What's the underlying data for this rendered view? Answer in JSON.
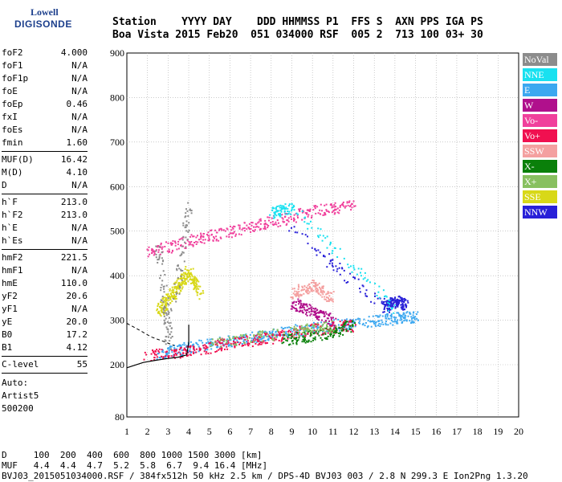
{
  "logo": {
    "top": "Lowell",
    "bottom": "DIGISONDE"
  },
  "header": {
    "line1": "Station    YYYY DAY    DDD HHMMSS P1  FFS S  AXN PPS IGA PS",
    "line2": "Boa Vista 2015 Feb20  051 034000 RSF  005 2  713 100 03+ 30"
  },
  "params_group1": [
    {
      "label": "foF2",
      "value": "4.000"
    },
    {
      "label": "foF1",
      "value": "N/A"
    },
    {
      "label": "foF1p",
      "value": "N/A"
    },
    {
      "label": "foE",
      "value": "N/A"
    },
    {
      "label": "foEp",
      "value": "0.46"
    },
    {
      "label": "fxI",
      "value": "N/A"
    },
    {
      "label": "foEs",
      "value": "N/A"
    },
    {
      "label": "fmin",
      "value": "1.60"
    }
  ],
  "params_group2": [
    {
      "label": "MUF(D)",
      "value": "16.42"
    },
    {
      "label": "M(D)",
      "value": "4.10"
    },
    {
      "label": "D",
      "value": "N/A"
    }
  ],
  "params_group3": [
    {
      "label": "h`F",
      "value": "213.0"
    },
    {
      "label": "h`F2",
      "value": "213.0"
    },
    {
      "label": "h`E",
      "value": "N/A"
    },
    {
      "label": "h`Es",
      "value": "N/A"
    }
  ],
  "params_group4": [
    {
      "label": "hmF2",
      "value": "221.5"
    },
    {
      "label": "hmF1",
      "value": "N/A"
    },
    {
      "label": "hmE",
      "value": "110.0"
    },
    {
      "label": "yF2",
      "value": "20.6"
    },
    {
      "label": "yF1",
      "value": "N/A"
    },
    {
      "label": "yE",
      "value": "20.0"
    },
    {
      "label": "B0",
      "value": "17.2"
    },
    {
      "label": "B1",
      "value": "4.12"
    }
  ],
  "params_group5": [
    {
      "label": "C-level",
      "value": "55"
    }
  ],
  "autoscale": {
    "line1": "Auto:",
    "line2": "Artist5",
    "line3": "500200"
  },
  "legend": [
    {
      "label": "NoVal",
      "color": "#8c8c8c"
    },
    {
      "label": "NNE",
      "color": "#19e1f0"
    },
    {
      "label": "E",
      "color": "#3ca8f0"
    },
    {
      "label": "W",
      "color": "#b0108c"
    },
    {
      "label": "Vo-",
      "color": "#f0409c"
    },
    {
      "label": "Vo+",
      "color": "#f01050"
    },
    {
      "label": "SSW",
      "color": "#f4a0a0"
    },
    {
      "label": "X-",
      "color": "#0a800a"
    },
    {
      "label": "X+",
      "color": "#88c060"
    },
    {
      "label": "SSE",
      "color": "#d8d818"
    },
    {
      "label": "NNW",
      "color": "#2820d8"
    }
  ],
  "footer": {
    "line1": "D     100  200  400  600  800 1000 1500 3000 [km]",
    "line2": "MUF   4.4  4.4  4.7  5.2  5.8  6.7  9.4 16.4 [MHz]",
    "line3": "BVJ03_2015051034000.RSF / 384fx512h 50 kHz 2.5 km / DPS-4D BVJ03 003 / 2.8 N 299.3 E Ion2Png 1.3.20"
  },
  "chart_data": {
    "type": "scatter",
    "xlabel": "",
    "ylabel": "",
    "xlim": [
      1,
      20
    ],
    "ylim": [
      80,
      900
    ],
    "x_ticks": [
      1,
      2,
      3,
      4,
      5,
      6,
      7,
      8,
      9,
      10,
      11,
      12,
      13,
      14,
      15,
      16,
      17,
      18,
      19,
      20
    ],
    "y_ticks": [
      80,
      200,
      300,
      400,
      500,
      600,
      700,
      800,
      900
    ],
    "series": [
      {
        "name": "E",
        "x": [
          2.5,
          4,
          6,
          8,
          10,
          12,
          14,
          15
        ],
        "y": [
          225,
          240,
          255,
          270,
          285,
          295,
          305,
          310
        ]
      },
      {
        "name": "Vo+",
        "x": [
          1.8,
          4,
          6,
          8,
          10,
          12
        ],
        "y": [
          220,
          232,
          250,
          262,
          280,
          290
        ]
      },
      {
        "name": "Vo-",
        "x": [
          2,
          4,
          6,
          8,
          10,
          12
        ],
        "y": [
          455,
          478,
          500,
          522,
          545,
          560
        ]
      },
      {
        "name": "SSE",
        "x": [
          2.5,
          3,
          3.5,
          4,
          4.5
        ],
        "y": [
          320,
          350,
          380,
          410,
          360
        ]
      },
      {
        "name": "NNW",
        "x": [
          9,
          13.5,
          14,
          14.5
        ],
        "y": [
          505,
          330,
          345,
          335
        ]
      },
      {
        "name": "NNE",
        "x": [
          8,
          9,
          14
        ],
        "y": [
          540,
          555,
          325
        ]
      },
      {
        "name": "W",
        "x": [
          9,
          10,
          11
        ],
        "y": [
          340,
          320,
          300
        ]
      },
      {
        "name": "X-",
        "x": [
          8.5,
          10.5,
          12
        ],
        "y": [
          255,
          270,
          290
        ]
      },
      {
        "name": "X+",
        "x": [
          5,
          9,
          11
        ],
        "y": [
          250,
          275,
          290
        ]
      },
      {
        "name": "SSW",
        "x": [
          9,
          10,
          11
        ],
        "y": [
          360,
          380,
          350
        ]
      },
      {
        "name": "NoVal",
        "x": [
          2.5,
          3,
          4
        ],
        "y": [
          470,
          250,
          560
        ]
      }
    ],
    "profile": {
      "x": [
        1.0,
        1.8,
        2.4,
        3.0,
        3.5,
        3.9,
        4.0,
        4.0
      ],
      "y": [
        193,
        205,
        210,
        214,
        217,
        222,
        250,
        290
      ]
    },
    "trace_line": {
      "x": [
        1.0,
        1.6,
        2.2,
        2.8,
        3.3
      ],
      "y": [
        293,
        278,
        262,
        252,
        243
      ]
    }
  }
}
